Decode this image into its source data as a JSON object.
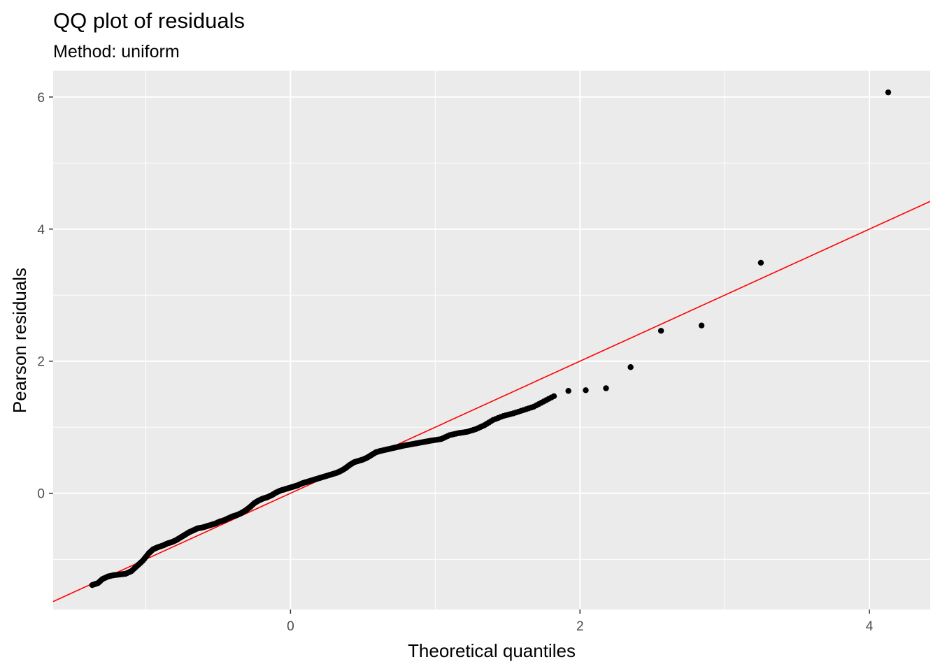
{
  "title": "QQ plot of residuals",
  "subtitle": "Method: uniform",
  "chart_data": {
    "type": "scatter",
    "title": "QQ plot of residuals",
    "subtitle": "Method: uniform",
    "xlabel": "Theoretical quantiles",
    "ylabel": "Pearson residuals",
    "xlim": [
      -1.64,
      4.42
    ],
    "ylim": [
      -1.76,
      6.4
    ],
    "x_ticks": [
      0,
      2,
      4
    ],
    "y_ticks": [
      0,
      2,
      4,
      6
    ],
    "grid": true,
    "reference_line": {
      "intercept": 0,
      "slope": 1,
      "color": "#ff0000"
    },
    "point_color": "#000000",
    "panel_background": "#ebebeb",
    "outliers": [
      {
        "x": 1.92,
        "y": 1.55
      },
      {
        "x": 2.04,
        "y": 1.56
      },
      {
        "x": 2.18,
        "y": 1.59
      },
      {
        "x": 2.35,
        "y": 1.91
      },
      {
        "x": 2.56,
        "y": 2.46
      },
      {
        "x": 2.84,
        "y": 2.54
      },
      {
        "x": 3.25,
        "y": 3.49
      },
      {
        "x": 4.13,
        "y": 6.07
      }
    ],
    "points_curve": [
      [
        -1.37,
        -1.39
      ],
      [
        -1.33,
        -1.36
      ],
      [
        -1.3,
        -1.3
      ],
      [
        -1.26,
        -1.26
      ],
      [
        -1.22,
        -1.24
      ],
      [
        -1.18,
        -1.23
      ],
      [
        -1.14,
        -1.22
      ],
      [
        -1.1,
        -1.18
      ],
      [
        -1.06,
        -1.1
      ],
      [
        -1.02,
        -1.02
      ],
      [
        -0.98,
        -0.91
      ],
      [
        -0.95,
        -0.85
      ],
      [
        -0.92,
        -0.82
      ],
      [
        -0.88,
        -0.79
      ],
      [
        -0.85,
        -0.76
      ],
      [
        -0.82,
        -0.74
      ],
      [
        -0.79,
        -0.71
      ],
      [
        -0.76,
        -0.67
      ],
      [
        -0.73,
        -0.63
      ],
      [
        -0.7,
        -0.59
      ],
      [
        -0.67,
        -0.56
      ],
      [
        -0.64,
        -0.53
      ],
      [
        -0.61,
        -0.52
      ],
      [
        -0.58,
        -0.5
      ],
      [
        -0.55,
        -0.48
      ],
      [
        -0.52,
        -0.46
      ],
      [
        -0.49,
        -0.43
      ],
      [
        -0.46,
        -0.41
      ],
      [
        -0.43,
        -0.38
      ],
      [
        -0.4,
        -0.35
      ],
      [
        -0.37,
        -0.33
      ],
      [
        -0.34,
        -0.3
      ],
      [
        -0.31,
        -0.26
      ],
      [
        -0.28,
        -0.21
      ],
      [
        -0.25,
        -0.15
      ],
      [
        -0.22,
        -0.11
      ],
      [
        -0.19,
        -0.08
      ],
      [
        -0.16,
        -0.06
      ],
      [
        -0.13,
        -0.03
      ],
      [
        -0.1,
        0.01
      ],
      [
        -0.07,
        0.04
      ],
      [
        -0.04,
        0.06
      ],
      [
        -0.01,
        0.08
      ],
      [
        0.02,
        0.1
      ],
      [
        0.05,
        0.12
      ],
      [
        0.08,
        0.15
      ],
      [
        0.11,
        0.17
      ],
      [
        0.14,
        0.19
      ],
      [
        0.17,
        0.21
      ],
      [
        0.2,
        0.23
      ],
      [
        0.23,
        0.25
      ],
      [
        0.26,
        0.27
      ],
      [
        0.29,
        0.29
      ],
      [
        0.32,
        0.31
      ],
      [
        0.35,
        0.34
      ],
      [
        0.38,
        0.38
      ],
      [
        0.41,
        0.43
      ],
      [
        0.44,
        0.47
      ],
      [
        0.47,
        0.49
      ],
      [
        0.5,
        0.51
      ],
      [
        0.53,
        0.54
      ],
      [
        0.56,
        0.58
      ],
      [
        0.59,
        0.62
      ],
      [
        0.62,
        0.64
      ],
      [
        0.66,
        0.66
      ],
      [
        0.7,
        0.68
      ],
      [
        0.74,
        0.7
      ],
      [
        0.78,
        0.72
      ],
      [
        0.83,
        0.74
      ],
      [
        0.88,
        0.76
      ],
      [
        0.93,
        0.78
      ],
      [
        0.98,
        0.8
      ],
      [
        1.04,
        0.82
      ],
      [
        1.1,
        0.88
      ],
      [
        1.16,
        0.91
      ],
      [
        1.22,
        0.93
      ],
      [
        1.28,
        0.97
      ],
      [
        1.34,
        1.03
      ],
      [
        1.4,
        1.11
      ],
      [
        1.47,
        1.17
      ],
      [
        1.54,
        1.21
      ],
      [
        1.61,
        1.26
      ],
      [
        1.68,
        1.31
      ],
      [
        1.75,
        1.39
      ],
      [
        1.82,
        1.47
      ]
    ]
  }
}
